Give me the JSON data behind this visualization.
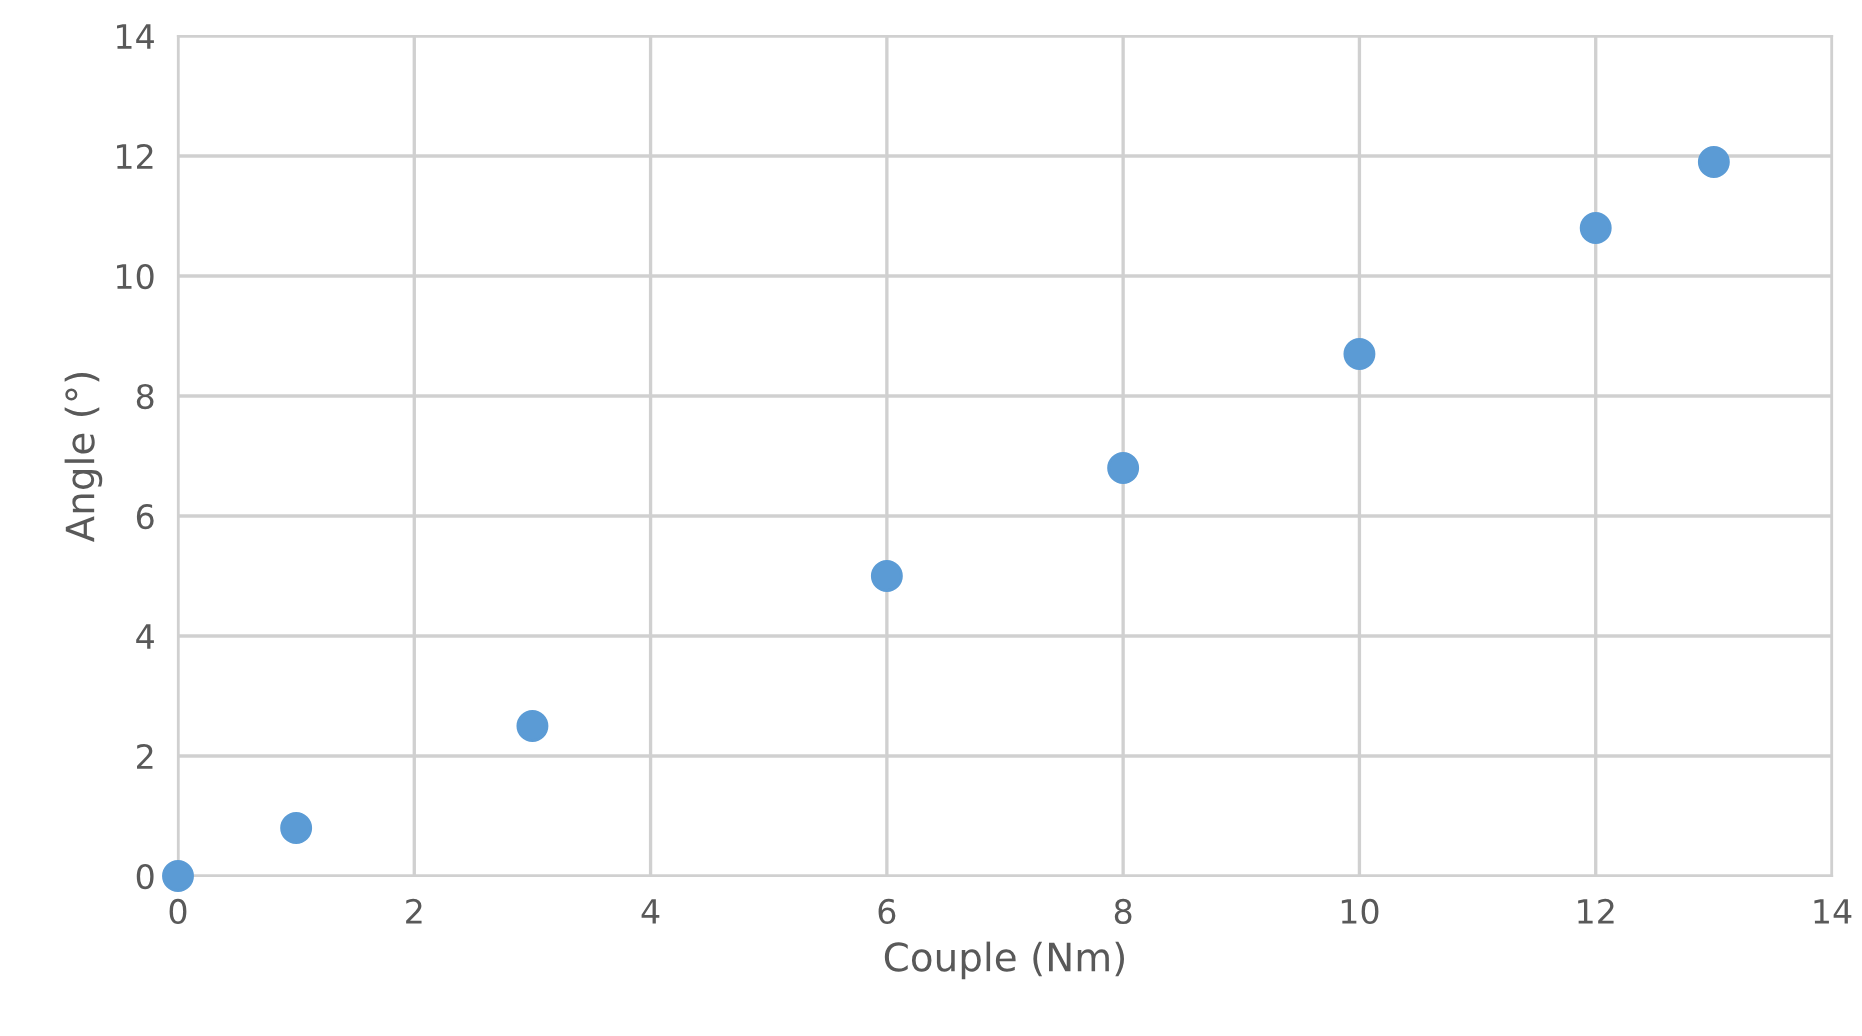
{
  "chart_data": {
    "type": "scatter",
    "xlabel": "Couple (Nm)",
    "ylabel": "Angle (°)",
    "x": [
      0,
      1,
      3,
      6,
      8,
      10,
      12,
      13
    ],
    "series": [
      {
        "color": "#5b9bd5",
        "values": [
          0,
          0.8,
          2.5,
          5.0,
          6.8,
          8.7,
          10.8,
          11.9
        ]
      }
    ],
    "xlim": [
      0,
      14
    ],
    "ylim": [
      0,
      14
    ],
    "xticks": [
      0,
      2,
      4,
      6,
      8,
      10,
      12,
      14
    ],
    "yticks": [
      0,
      2,
      4,
      6,
      8,
      10,
      12,
      14
    ],
    "grid": true,
    "marker": "circle"
  }
}
